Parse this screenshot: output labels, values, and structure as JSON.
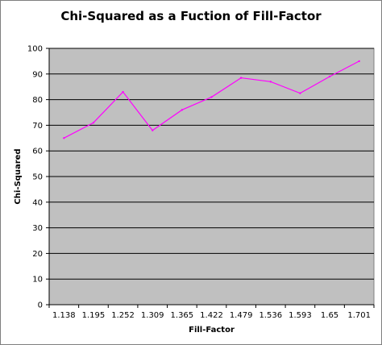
{
  "chart_data": {
    "type": "line",
    "title": "Chi-Squared as a Fuction of Fill-Factor",
    "xlabel": "Fill-Factor",
    "ylabel": "Chi-Squared",
    "categories": [
      "1.138",
      "1.195",
      "1.252",
      "1.309",
      "1.365",
      "1.422",
      "1.479",
      "1.536",
      "1.593",
      "1.65",
      "1.701"
    ],
    "series": [
      {
        "values": [
          65,
          71,
          83,
          68,
          76,
          81,
          88.5,
          87,
          82.5,
          89,
          95
        ],
        "color": "#ff00ff"
      }
    ],
    "ylim": [
      0,
      100
    ],
    "yticks": [
      "0",
      "10",
      "20",
      "30",
      "40",
      "50",
      "60",
      "70",
      "80",
      "90",
      "100"
    ],
    "grid": true,
    "plot_background": "#c0c0c0",
    "legend": "none"
  }
}
